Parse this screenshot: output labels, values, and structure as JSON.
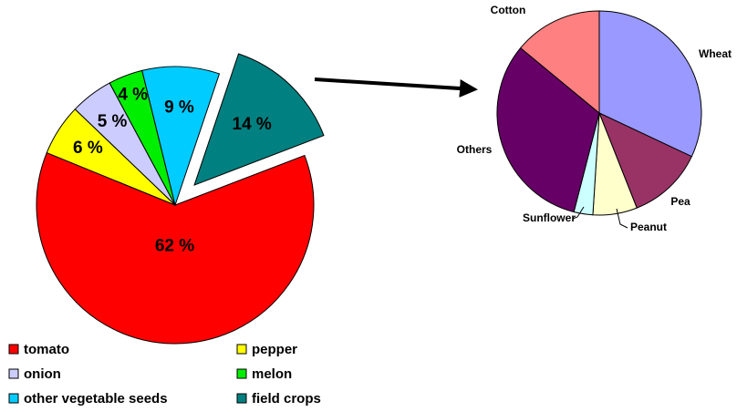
{
  "chart_data": [
    {
      "type": "pie",
      "categories": [
        "tomato",
        "pepper",
        "onion",
        "melon",
        "other vegetable seeds",
        "field crops"
      ],
      "values": [
        62,
        6,
        5,
        4,
        9,
        14
      ],
      "value_labels": [
        "62 %",
        "6 %",
        "5 %",
        "4 %",
        "9 %",
        "14 %"
      ],
      "colors": [
        "#ff0000",
        "#ffff00",
        "#ccccff",
        "#00ee00",
        "#00ccff",
        "#008080"
      ],
      "explode": [
        0,
        0,
        0,
        0,
        0,
        0.2
      ],
      "legend": "bottom"
    },
    {
      "type": "pie",
      "categories": [
        "Wheat",
        "Pea",
        "Peanut",
        "Sunflower",
        "Others",
        "Cotton"
      ],
      "values": [
        32,
        12,
        7,
        3,
        32,
        14
      ],
      "colors": [
        "#9999ff",
        "#993366",
        "#ffffcc",
        "#ccffff",
        "#660066",
        "#ff8080"
      ]
    }
  ]
}
